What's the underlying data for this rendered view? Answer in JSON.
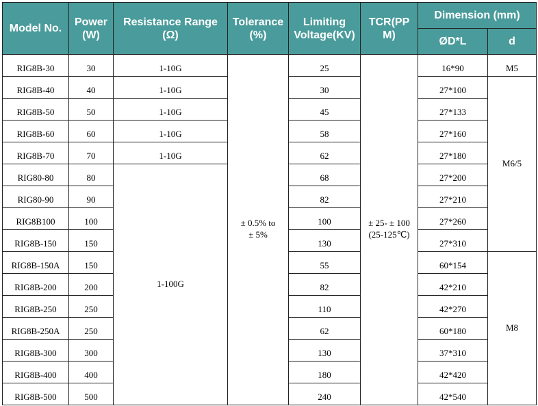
{
  "header": {
    "model": "Model No.",
    "power": [
      "Power",
      "(W)"
    ],
    "resistance": [
      "Resistance Range",
      "(Ω)"
    ],
    "tolerance": [
      "Tolerance",
      "(%)"
    ],
    "voltage": [
      "Limiting",
      "Voltage(KV)"
    ],
    "tcr": [
      "TCR(PP",
      "M)"
    ],
    "dimension": "Dimension (mm)",
    "dl": "ØD*L",
    "d": "d"
  },
  "header_color": "#4a9b9b",
  "tolerance": [
    "± 0.5%  to",
    "±  5%"
  ],
  "tcr": [
    "± 25- ± 100",
    "(25-125℃)"
  ],
  "resistance_merged": "1-100G",
  "d_groups": [
    "M5",
    "M6/5",
    "M8"
  ],
  "rows": [
    {
      "model": "RIG8B-30",
      "power": "30",
      "res": "1-10G",
      "kv": "25",
      "dl": "16*90"
    },
    {
      "model": "RIG8B-40",
      "power": "40",
      "res": "1-10G",
      "kv": "30",
      "dl": "27*100"
    },
    {
      "model": "RIG8B-50",
      "power": "50",
      "res": "1-10G",
      "kv": "45",
      "dl": "27*133"
    },
    {
      "model": "RIG8B-60",
      "power": "60",
      "res": "1-10G",
      "kv": "58",
      "dl": "27*160"
    },
    {
      "model": "RIG8B-70",
      "power": "70",
      "res": "1-10G",
      "kv": "62",
      "dl": "27*180"
    },
    {
      "model": "RIG80-80",
      "power": "80",
      "kv": "68",
      "dl": "27*200"
    },
    {
      "model": "RIG80-90",
      "power": "90",
      "kv": "82",
      "dl": "27*210"
    },
    {
      "model": "RIG8B100",
      "power": "100",
      "kv": "100",
      "dl": "27*260"
    },
    {
      "model": "RIG8B-150",
      "power": "150",
      "kv": "130",
      "dl": "27*310"
    },
    {
      "model": "RIG8B-150A",
      "power": "150",
      "kv": "55",
      "dl": "60*154"
    },
    {
      "model": "RIG8B-200",
      "power": "200",
      "kv": "82",
      "dl": "42*210"
    },
    {
      "model": "RIG8B-250",
      "power": "250",
      "kv": "110",
      "dl": "42*270"
    },
    {
      "model": "RIG8B-250A",
      "power": "250",
      "kv": "62",
      "dl": "60*180"
    },
    {
      "model": "RIG8B-300",
      "power": "300",
      "kv": "130",
      "dl": "37*310"
    },
    {
      "model": "RIG8B-400",
      "power": "400",
      "kv": "180",
      "dl": "42*420"
    },
    {
      "model": "RIG8B-500",
      "power": "500",
      "kv": "240",
      "dl": "42*540"
    }
  ]
}
